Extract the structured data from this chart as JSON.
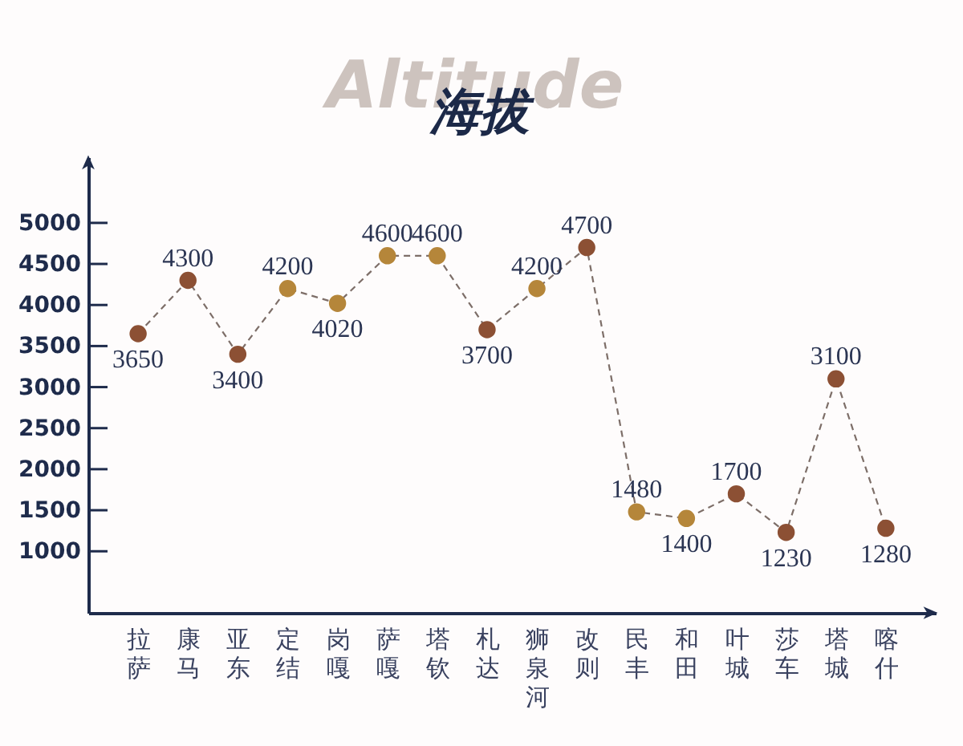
{
  "chart_data": {
    "type": "line",
    "title": "海拔",
    "subtitle": "Altitude",
    "categories": [
      "拉萨",
      "康马",
      "亚东",
      "定结",
      "岗嘎",
      "萨嘎",
      "塔钦",
      "札达",
      "狮泉河",
      "改则",
      "民丰",
      "和田",
      "叶城",
      "莎车",
      "塔城",
      "喀什"
    ],
    "values": [
      3650,
      4300,
      3400,
      4200,
      4020,
      4600,
      4600,
      3700,
      4200,
      4700,
      1480,
      1400,
      1700,
      1230,
      3100,
      1280
    ],
    "color": "#7d6e68",
    "colors": [
      "#8c5034",
      "#8c5034",
      "#8c5034",
      "#b5863a",
      "#b5863a",
      "#b5863a",
      "#b5863a",
      "#8c5034",
      "#b5863a",
      "#8c5034",
      "#b5863a",
      "#b5863a",
      "#8c5034",
      "#8c5034",
      "#8c5034",
      "#8c5034"
    ],
    "marker": "circle",
    "line_style": "dashed",
    "data_labels": true,
    "ylim": [
      250,
      5800
    ],
    "yticks": [
      1000,
      1500,
      2000,
      2500,
      3000,
      3500,
      4000,
      4500,
      5000
    ]
  }
}
